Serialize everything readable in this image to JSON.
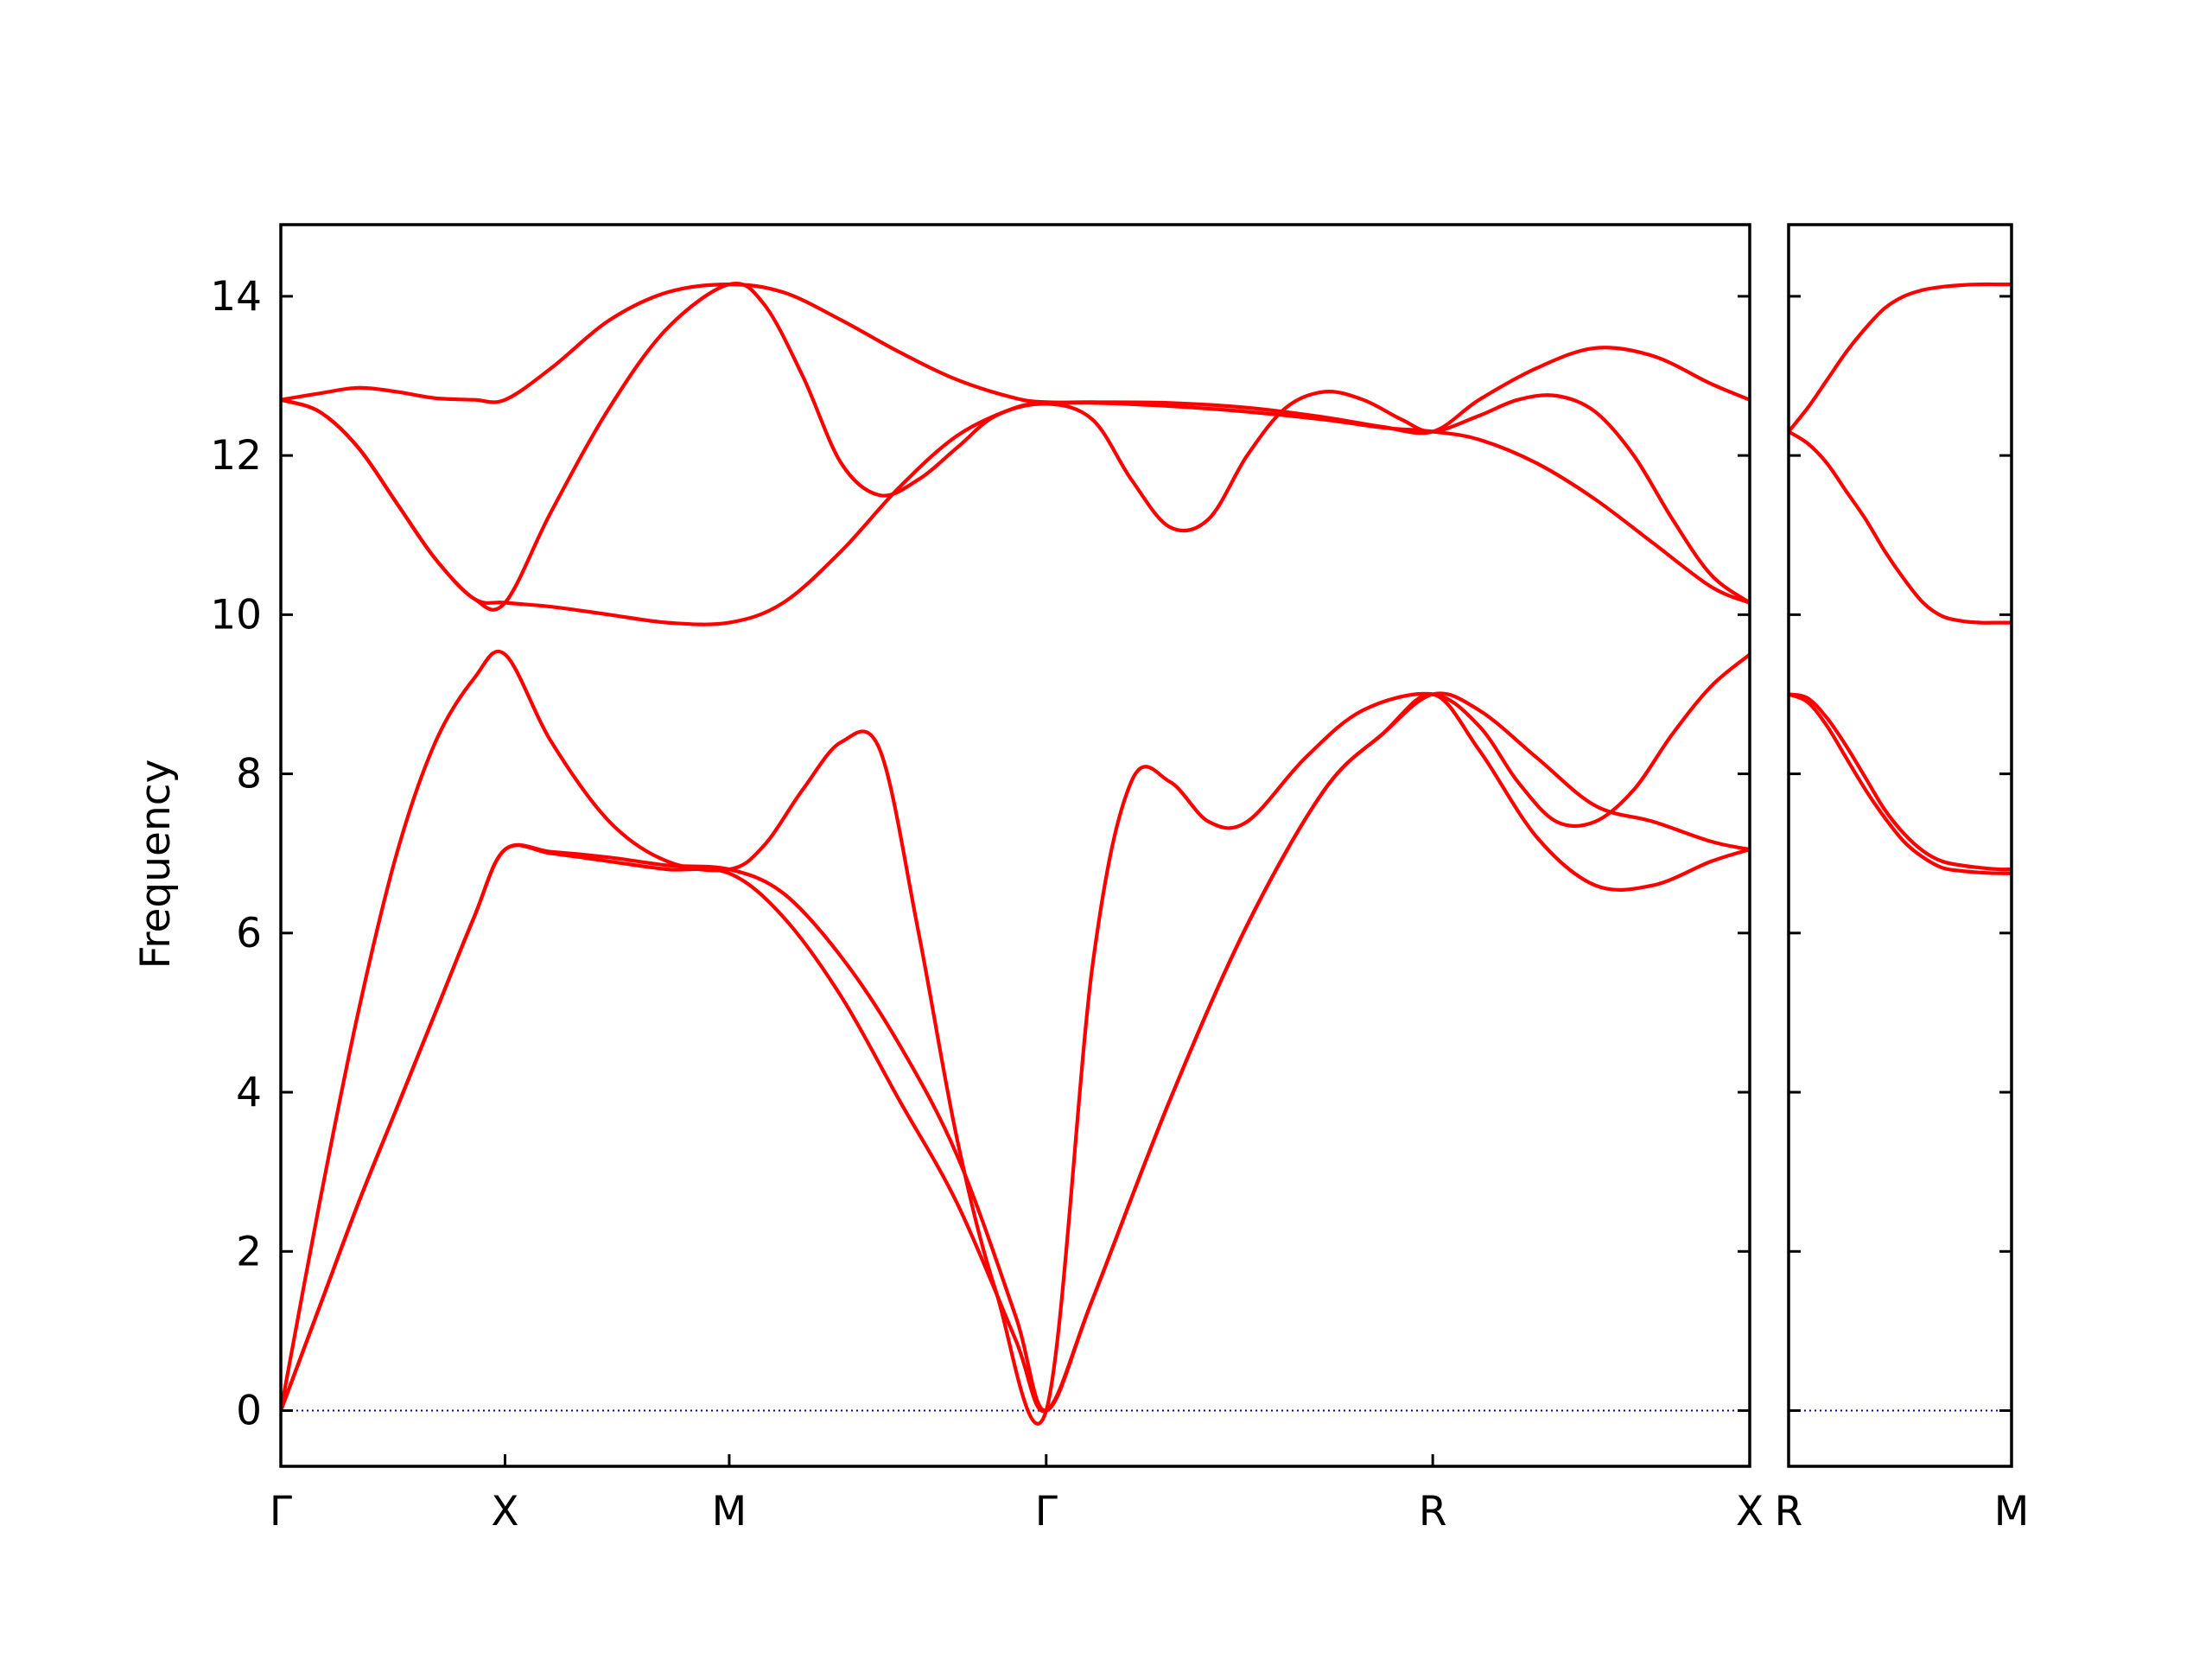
{
  "chart_data": {
    "type": "line",
    "title": "",
    "ylabel": "Frequency",
    "ylim": [
      -0.7,
      14.9
    ],
    "yticks": [
      0,
      2,
      4,
      6,
      8,
      10,
      12,
      14
    ],
    "grid": false,
    "colors": {
      "band": "#ff0000",
      "zero_line": "#0000aa"
    },
    "zero_line": 0,
    "panels": [
      {
        "xlim": [
          0,
          3.8
        ],
        "xticks": [
          {
            "x": 0.0,
            "label": "Γ"
          },
          {
            "x": 0.58,
            "label": "X"
          },
          {
            "x": 1.16,
            "label": "M"
          },
          {
            "x": 1.98,
            "label": "Γ"
          },
          {
            "x": 2.98,
            "label": "R"
          },
          {
            "x": 3.8,
            "label": "X"
          }
        ],
        "series": [
          {
            "x": [
              0,
              0.1,
              0.2,
              0.3,
              0.4,
              0.5,
              0.58,
              0.7,
              0.85,
              1.0,
              1.16,
              1.3,
              1.45,
              1.6,
              1.75,
              1.9,
              1.98,
              2.1,
              2.3,
              2.5,
              2.7,
              2.85,
              2.98,
              3.1,
              3.25,
              3.4,
              3.55,
              3.7,
              3.8
            ],
            "y": [
              0,
              1.3,
              2.6,
              3.8,
              5.0,
              6.2,
              7.05,
              7.02,
              6.95,
              6.85,
              6.8,
              6.5,
              5.7,
              4.6,
              3.2,
              1.2,
              0,
              1.4,
              3.9,
              6.1,
              7.8,
              8.5,
              9.0,
              8.8,
              8.2,
              7.6,
              7.4,
              7.15,
              7.05
            ]
          },
          {
            "x": [
              0,
              0.1,
              0.2,
              0.3,
              0.4,
              0.5,
              0.58,
              0.7,
              0.85,
              1.0,
              1.16,
              1.3,
              1.45,
              1.6,
              1.75,
              1.9,
              1.98,
              2.1,
              2.3,
              2.5,
              2.7,
              2.85,
              2.98,
              3.1,
              3.25,
              3.4,
              3.55,
              3.7,
              3.8
            ],
            "y": [
              0,
              1.3,
              2.6,
              3.8,
              5.0,
              6.2,
              7.05,
              7.0,
              6.9,
              6.8,
              6.75,
              6.2,
              5.2,
              3.9,
              2.6,
              0.9,
              0,
              1.4,
              3.9,
              6.1,
              7.8,
              8.5,
              9.0,
              8.3,
              7.2,
              6.6,
              6.6,
              6.9,
              7.05
            ]
          },
          {
            "x": [
              0,
              0.1,
              0.2,
              0.3,
              0.4,
              0.5,
              0.58,
              0.7,
              0.85,
              1.0,
              1.16,
              1.25,
              1.35,
              1.45,
              1.55,
              1.65,
              1.75,
              1.85,
              1.98,
              2.1,
              2.2,
              2.3,
              2.4,
              2.5,
              2.65,
              2.8,
              2.98,
              3.1,
              3.2,
              3.3,
              3.4,
              3.5,
              3.6,
              3.7,
              3.8
            ],
            "y": [
              0,
              2.6,
              5.0,
              7.0,
              8.4,
              9.2,
              9.5,
              8.4,
              7.4,
              6.9,
              6.8,
              7.1,
              7.8,
              8.4,
              8.3,
              6.0,
              3.4,
              1.5,
              0,
              5.6,
              7.9,
              7.9,
              7.4,
              7.4,
              8.2,
              8.8,
              9.0,
              8.6,
              7.9,
              7.4,
              7.4,
              7.8,
              8.5,
              9.1,
              9.5
            ]
          },
          {
            "x": [
              0,
              0.1,
              0.2,
              0.3,
              0.4,
              0.5,
              0.58,
              0.7,
              0.85,
              1.0,
              1.16,
              1.3,
              1.45,
              1.6,
              1.75,
              1.9,
              1.98,
              2.1,
              2.3,
              2.5,
              2.7,
              2.85,
              2.98,
              3.1,
              3.25,
              3.4,
              3.55,
              3.7,
              3.8
            ],
            "y": [
              12.7,
              12.55,
              12.1,
              11.4,
              10.7,
              10.2,
              10.15,
              10.1,
              10.0,
              9.9,
              9.9,
              10.15,
              10.8,
              11.6,
              12.25,
              12.6,
              12.65,
              12.66,
              12.62,
              12.55,
              12.45,
              12.35,
              12.3,
              12.2,
              11.9,
              11.45,
              10.9,
              10.35,
              10.15
            ]
          },
          {
            "x": [
              0,
              0.1,
              0.2,
              0.3,
              0.4,
              0.5,
              0.58,
              0.7,
              0.85,
              1.0,
              1.16,
              1.25,
              1.35,
              1.45,
              1.55,
              1.65,
              1.75,
              1.85,
              1.98,
              2.1,
              2.2,
              2.3,
              2.4,
              2.5,
              2.6,
              2.7,
              2.8,
              2.9,
              2.98,
              3.1,
              3.2,
              3.3,
              3.4,
              3.5,
              3.6,
              3.7,
              3.8
            ],
            "y": [
              12.7,
              12.55,
              12.1,
              11.4,
              10.7,
              10.2,
              10.15,
              11.3,
              12.6,
              13.6,
              14.15,
              13.9,
              13.0,
              11.9,
              11.5,
              11.7,
              12.1,
              12.5,
              12.65,
              12.45,
              11.7,
              11.1,
              11.2,
              12.0,
              12.6,
              12.8,
              12.7,
              12.45,
              12.3,
              12.5,
              12.7,
              12.75,
              12.55,
              12.0,
              11.2,
              10.5,
              10.15
            ]
          },
          {
            "x": [
              0,
              0.1,
              0.2,
              0.3,
              0.4,
              0.5,
              0.58,
              0.7,
              0.85,
              1.0,
              1.16,
              1.3,
              1.45,
              1.6,
              1.75,
              1.9,
              1.98,
              2.1,
              2.3,
              2.5,
              2.7,
              2.85,
              2.98,
              3.1,
              3.25,
              3.4,
              3.55,
              3.7,
              3.8
            ],
            "y": [
              12.7,
              12.78,
              12.85,
              12.8,
              12.72,
              12.7,
              12.7,
              13.1,
              13.7,
              14.05,
              14.15,
              14.05,
              13.7,
              13.3,
              12.95,
              12.72,
              12.67,
              12.67,
              12.66,
              12.6,
              12.48,
              12.36,
              12.3,
              12.7,
              13.1,
              13.35,
              13.25,
              12.9,
              12.7
            ]
          }
        ]
      },
      {
        "xlim": [
          0,
          0.58
        ],
        "xticks": [
          {
            "x": 0.0,
            "label": "R"
          },
          {
            "x": 0.58,
            "label": "M"
          }
        ],
        "series": [
          {
            "x": [
              0,
              0.05,
              0.1,
              0.15,
              0.2,
              0.25,
              0.3,
              0.35,
              0.4,
              0.45,
              0.5,
              0.55,
              0.58
            ],
            "y": [
              12.3,
              12.6,
              12.95,
              13.3,
              13.6,
              13.85,
              14.0,
              14.08,
              14.12,
              14.14,
              14.15,
              14.15,
              14.15
            ]
          },
          {
            "x": [
              0,
              0.05,
              0.1,
              0.15,
              0.2,
              0.25,
              0.3,
              0.35,
              0.4,
              0.45,
              0.5,
              0.55,
              0.58
            ],
            "y": [
              12.3,
              12.15,
              11.9,
              11.55,
              11.2,
              10.8,
              10.45,
              10.15,
              9.98,
              9.92,
              9.9,
              9.9,
              9.9
            ]
          },
          {
            "x": [
              0,
              0.05,
              0.1,
              0.15,
              0.2,
              0.25,
              0.3,
              0.35,
              0.4,
              0.45,
              0.5,
              0.55,
              0.58
            ],
            "y": [
              9.0,
              8.9,
              8.6,
              8.2,
              7.8,
              7.45,
              7.15,
              6.95,
              6.82,
              6.78,
              6.76,
              6.75,
              6.75
            ]
          },
          {
            "x": [
              0,
              0.05,
              0.1,
              0.15,
              0.2,
              0.25,
              0.3,
              0.35,
              0.4,
              0.45,
              0.5,
              0.55,
              0.58
            ],
            "y": [
              9.0,
              8.95,
              8.7,
              8.35,
              7.95,
              7.55,
              7.25,
              7.03,
              6.9,
              6.85,
              6.82,
              6.8,
              6.8
            ]
          }
        ]
      }
    ]
  }
}
